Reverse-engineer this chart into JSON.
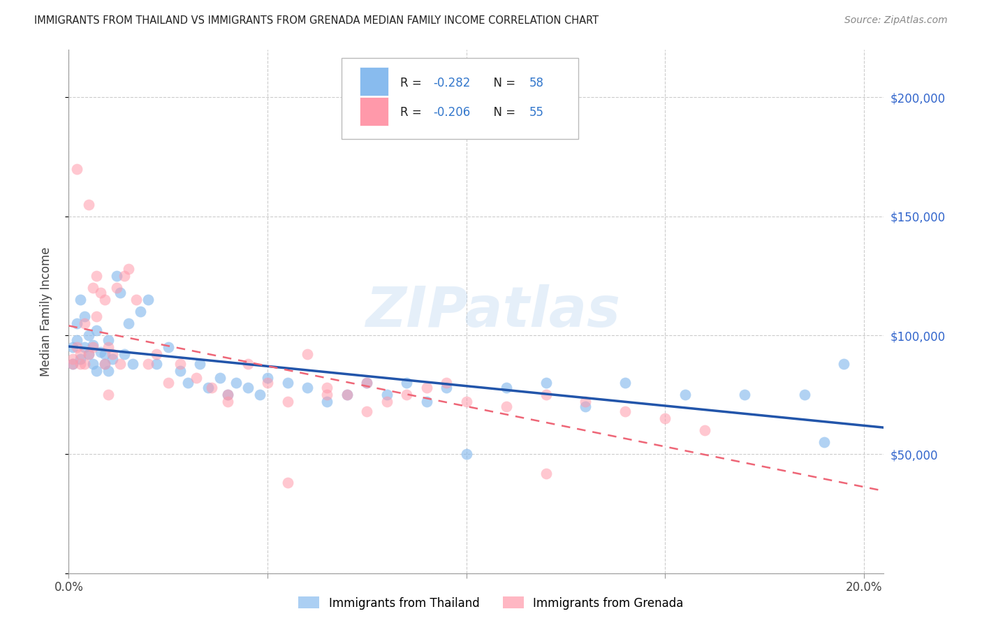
{
  "title": "IMMIGRANTS FROM THAILAND VS IMMIGRANTS FROM GRENADA MEDIAN FAMILY INCOME CORRELATION CHART",
  "source": "Source: ZipAtlas.com",
  "ylabel": "Median Family Income",
  "xlim": [
    0,
    0.205
  ],
  "ylim": [
    0,
    220000
  ],
  "yticks": [
    0,
    50000,
    100000,
    150000,
    200000
  ],
  "xticks": [
    0.0,
    0.05,
    0.1,
    0.15,
    0.2
  ],
  "legend_label1": "Immigrants from Thailand",
  "legend_label2": "Immigrants from Grenada",
  "color_blue": "#88BBEE",
  "color_pink": "#FF99AA",
  "color_blue_line": "#2255AA",
  "color_pink_line": "#EE6677",
  "color_legend_val": "#3377CC",
  "watermark": "ZIPatlas",
  "thailand_x": [
    0.001,
    0.001,
    0.002,
    0.002,
    0.003,
    0.003,
    0.004,
    0.004,
    0.005,
    0.005,
    0.006,
    0.006,
    0.007,
    0.007,
    0.008,
    0.009,
    0.009,
    0.01,
    0.01,
    0.011,
    0.012,
    0.013,
    0.014,
    0.015,
    0.016,
    0.018,
    0.02,
    0.022,
    0.025,
    0.028,
    0.03,
    0.033,
    0.035,
    0.038,
    0.04,
    0.042,
    0.045,
    0.048,
    0.05,
    0.055,
    0.06,
    0.065,
    0.07,
    0.075,
    0.08,
    0.085,
    0.09,
    0.095,
    0.1,
    0.11,
    0.12,
    0.13,
    0.14,
    0.155,
    0.17,
    0.185,
    0.19,
    0.195
  ],
  "thailand_y": [
    95000,
    88000,
    105000,
    98000,
    90000,
    115000,
    108000,
    95000,
    92000,
    100000,
    88000,
    96000,
    102000,
    85000,
    93000,
    88000,
    92000,
    98000,
    85000,
    90000,
    125000,
    118000,
    92000,
    105000,
    88000,
    110000,
    115000,
    88000,
    95000,
    85000,
    80000,
    88000,
    78000,
    82000,
    75000,
    80000,
    78000,
    75000,
    82000,
    80000,
    78000,
    72000,
    75000,
    80000,
    75000,
    80000,
    72000,
    78000,
    50000,
    78000,
    80000,
    70000,
    80000,
    75000,
    75000,
    75000,
    55000,
    88000
  ],
  "grenada_x": [
    0.001,
    0.001,
    0.002,
    0.002,
    0.003,
    0.003,
    0.004,
    0.004,
    0.005,
    0.005,
    0.006,
    0.006,
    0.007,
    0.007,
    0.008,
    0.009,
    0.009,
    0.01,
    0.011,
    0.012,
    0.013,
    0.014,
    0.015,
    0.017,
    0.02,
    0.022,
    0.025,
    0.028,
    0.032,
    0.036,
    0.04,
    0.045,
    0.05,
    0.055,
    0.06,
    0.065,
    0.07,
    0.075,
    0.08,
    0.085,
    0.09,
    0.095,
    0.1,
    0.11,
    0.12,
    0.13,
    0.14,
    0.15,
    0.16,
    0.065,
    0.075,
    0.04,
    0.12,
    0.055,
    0.01
  ],
  "grenada_y": [
    90000,
    88000,
    95000,
    170000,
    88000,
    92000,
    105000,
    88000,
    155000,
    92000,
    120000,
    95000,
    125000,
    108000,
    118000,
    88000,
    115000,
    95000,
    92000,
    120000,
    88000,
    125000,
    128000,
    115000,
    88000,
    92000,
    80000,
    88000,
    82000,
    78000,
    75000,
    88000,
    80000,
    72000,
    92000,
    78000,
    75000,
    80000,
    72000,
    75000,
    78000,
    80000,
    72000,
    70000,
    75000,
    72000,
    68000,
    65000,
    60000,
    75000,
    68000,
    72000,
    42000,
    38000,
    75000
  ]
}
